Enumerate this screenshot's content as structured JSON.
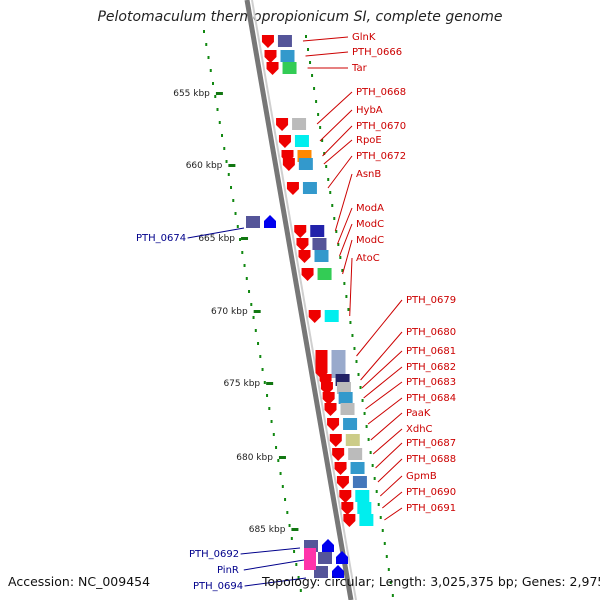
{
  "title": "Pelotomaculum thermopropionicum SI, complete genome",
  "footer": {
    "accession": "Accession: NC_009454",
    "summary": "Topology: circular; Length: 3,025,375 bp; Genes: 2,975"
  },
  "colors": {
    "forward_label": "#cc0000",
    "reverse_label": "#00008b",
    "forward_gene": "#ee0000",
    "reverse_gene": "#0000ee",
    "backbone": "#888888",
    "ruler_dots": "#118811",
    "ruler_tick": "#117711"
  },
  "ruler": {
    "ticks": [
      "655 kbp",
      "660 kbp",
      "665 kbp",
      "670 kbp",
      "675 kbp",
      "680 kbp",
      "685 kbp"
    ]
  },
  "forward_labels": [
    "GlnK",
    "PTH_0666",
    "Tar",
    "PTH_0668",
    "HybA",
    "PTH_0670",
    "RpoE",
    "PTH_0672",
    "AsnB",
    "ModA",
    "ModC",
    "ModC",
    "AtoC",
    "PTH_0679",
    "PTH_0680",
    "PTH_0681",
    "PTH_0682",
    "PTH_0683",
    "PTH_0684",
    "PaaK",
    "XdhC",
    "PTH_0687",
    "PTH_0688",
    "GpmB",
    "PTH_0690",
    "PTH_0691"
  ],
  "reverse_labels": [
    "PTH_0674",
    "PTH_0692",
    "PinR",
    "PTH_0694"
  ],
  "cog_colors": [
    "#555599",
    "#3399cc",
    "#33cc55",
    "#bbbbbb",
    "#00eeee",
    "#ff8800",
    "#4477bb",
    "#2222aa",
    "#cccc88",
    "#ff33aa",
    "#1111cc",
    "#99aacc",
    "#222266"
  ]
}
